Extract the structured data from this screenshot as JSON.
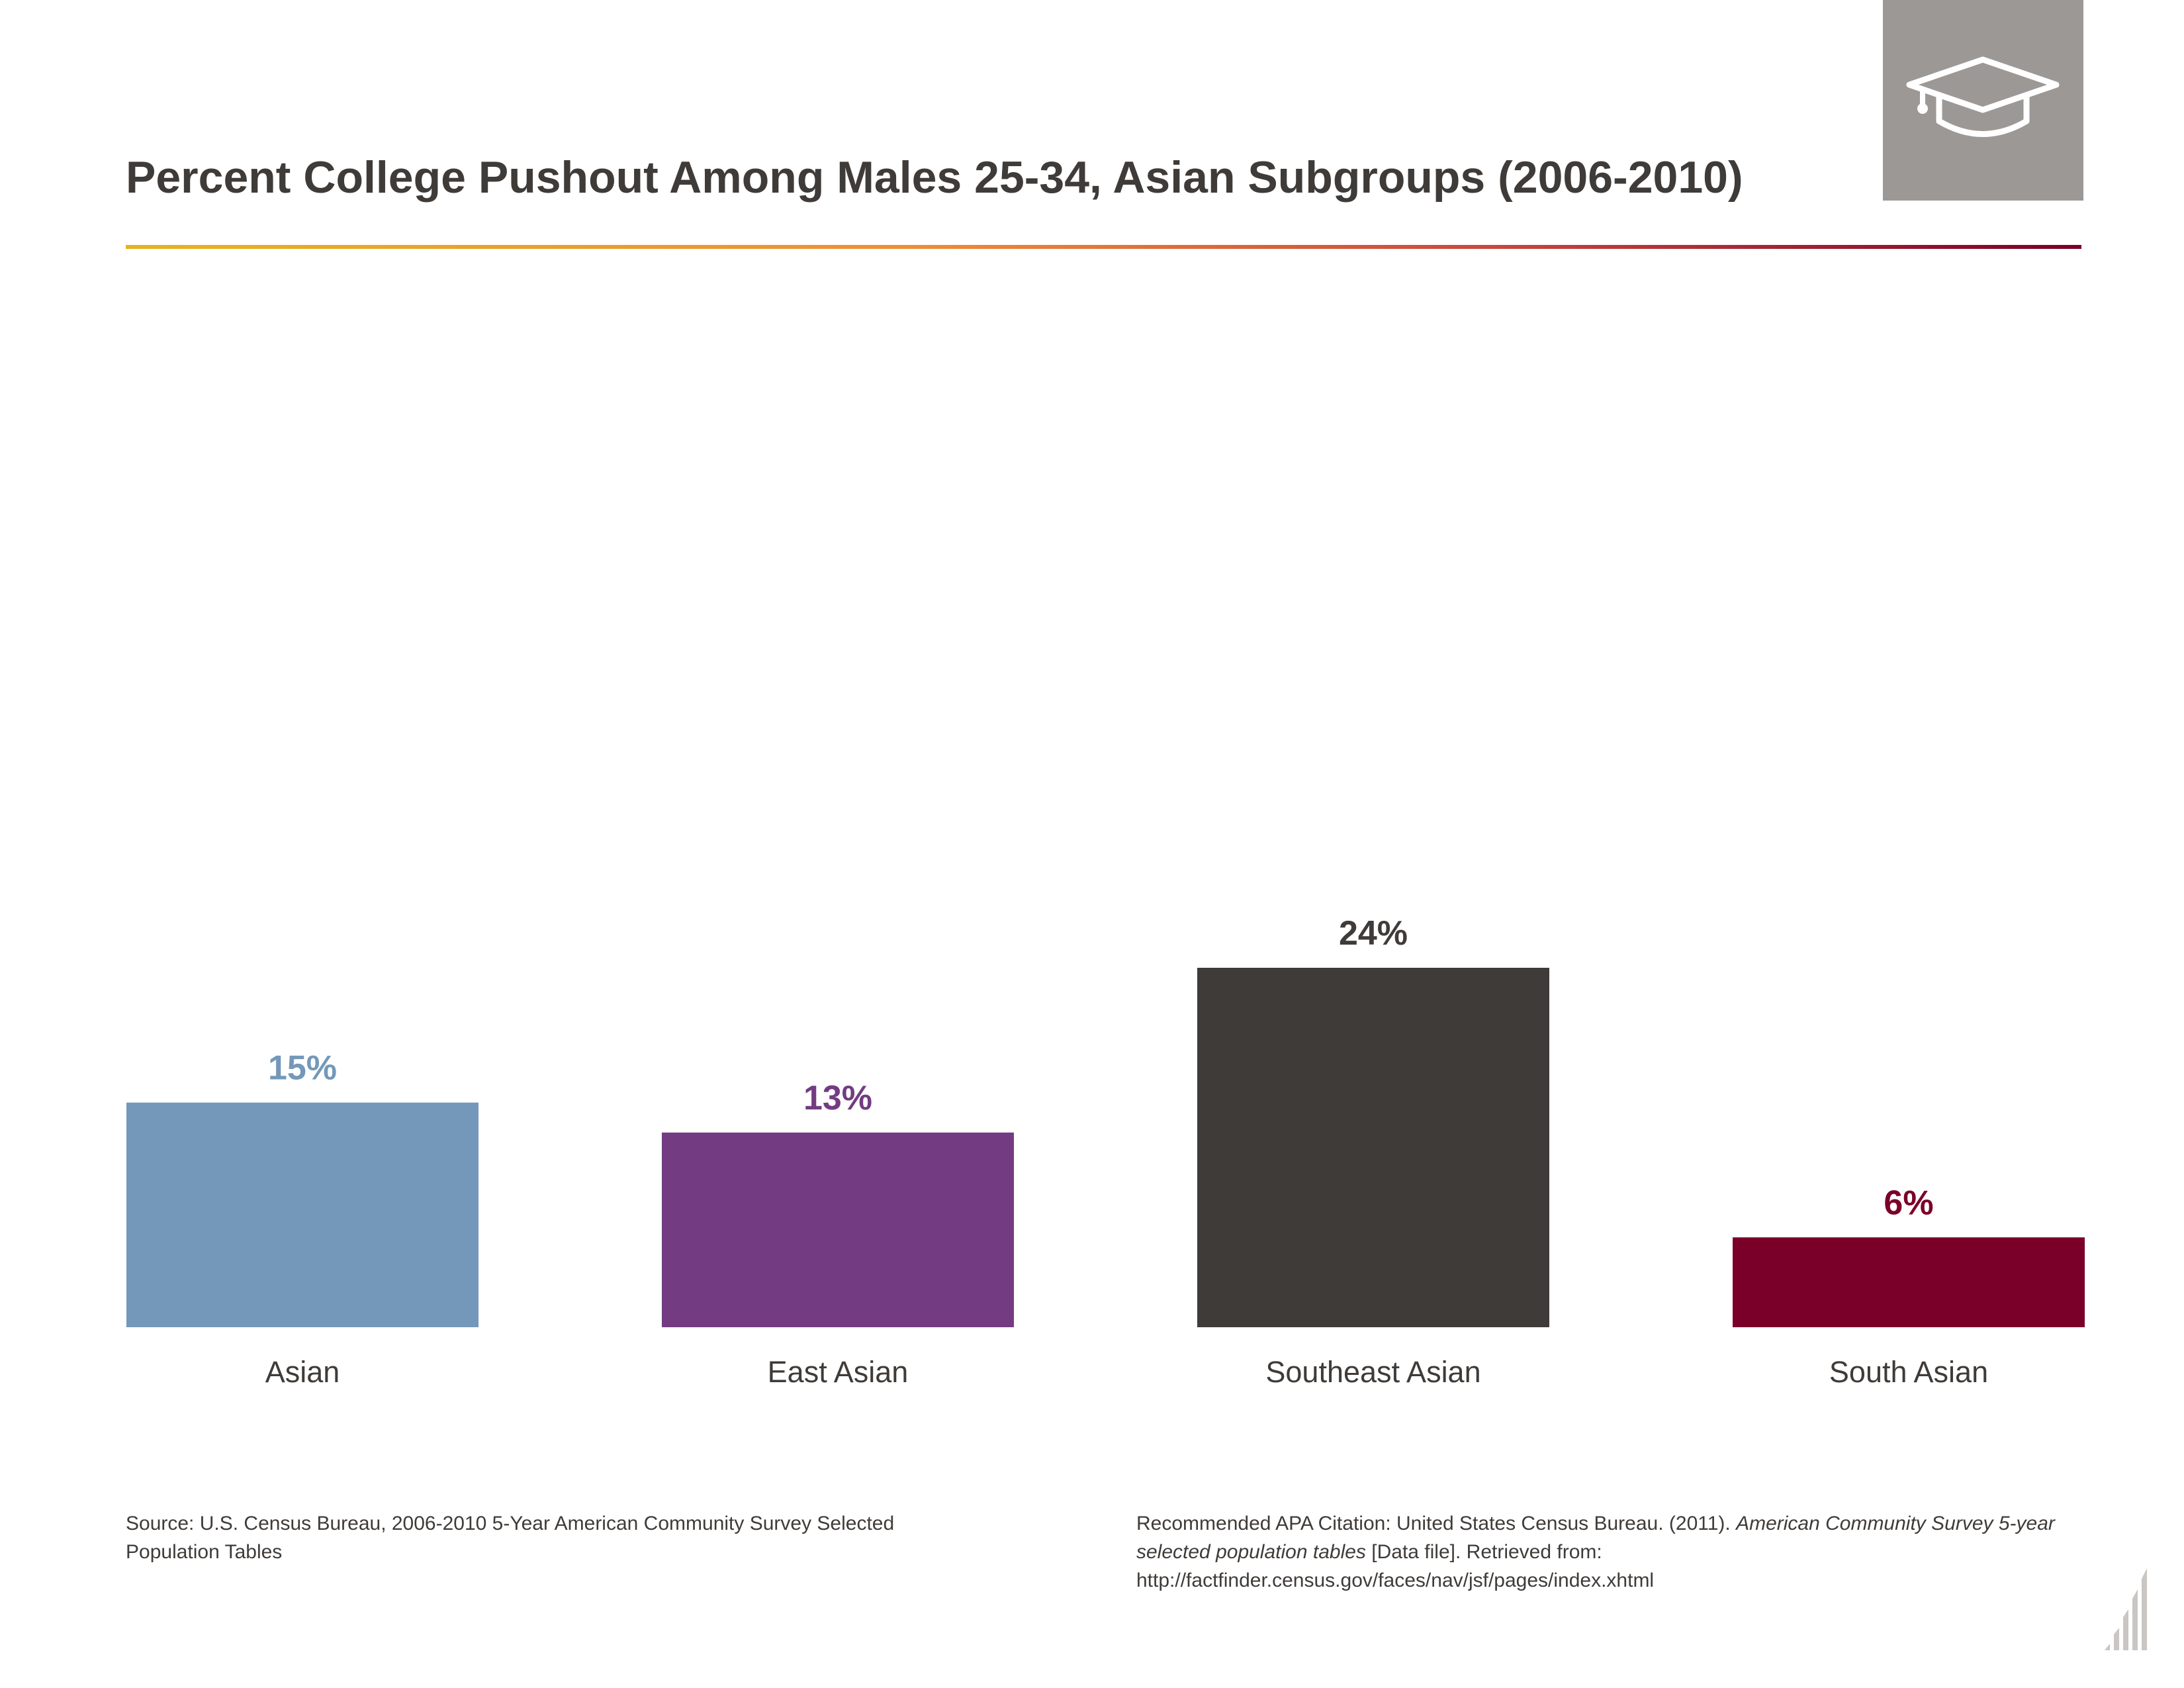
{
  "header": {
    "title": "Percent College Pushout Among Males 25-34, Asian Subgroups (2006-2010)",
    "icon": "graduation-cap-icon",
    "badge_color": "#9c9896"
  },
  "chart_data": {
    "type": "bar",
    "title": "Percent College Pushout Among Males 25-34, Asian Subgroups (2006-2010)",
    "categories": [
      "Asian",
      "East Asian",
      "Southeast Asian",
      "South Asian"
    ],
    "values": [
      15,
      13,
      24,
      6
    ],
    "value_labels": [
      "15%",
      "13%",
      "24%",
      "6%"
    ],
    "colors": [
      "#7398b9",
      "#733c82",
      "#3f3b38",
      "#7b0029"
    ],
    "xlabel": "",
    "ylabel": "",
    "ylim": [
      0,
      24
    ],
    "grid": false,
    "legend": "none"
  },
  "footer": {
    "source": "Source: U.S. Census Bureau, 2006-2010 5-Year American Community Survey Selected Population Tables",
    "citation_prefix": "Recommended APA Citation: United States Census Bureau. (2011). ",
    "citation_italic": "American Community Survey 5-year selected population tables",
    "citation_suffix": " [Data file]. Retrieved from: http://factfinder.census.gov/faces/nav/jsf/pages/index.xhtml",
    "corner_icon": "bar-chart-icon"
  }
}
